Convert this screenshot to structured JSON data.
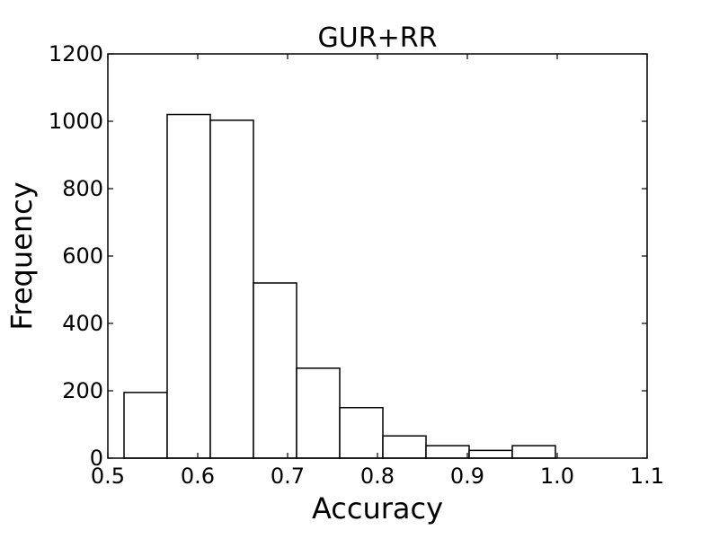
{
  "chart_data": {
    "type": "bar",
    "subtype": "histogram",
    "title": "GUR+RR",
    "xlabel": "Accuracy",
    "ylabel": "Frequency",
    "xlim": [
      0.5,
      1.1
    ],
    "ylim": [
      0,
      1200
    ],
    "xticks": [
      "0.5",
      "0.6",
      "0.7",
      "0.8",
      "0.9",
      "1.0",
      "1.1"
    ],
    "yticks": [
      "0",
      "200",
      "400",
      "600",
      "800",
      "1000",
      "1200"
    ],
    "bins": [
      {
        "x0": 0.518,
        "x1": 0.566,
        "count": 195
      },
      {
        "x0": 0.566,
        "x1": 0.614,
        "count": 1020
      },
      {
        "x0": 0.614,
        "x1": 0.662,
        "count": 1003
      },
      {
        "x0": 0.662,
        "x1": 0.71,
        "count": 520
      },
      {
        "x0": 0.71,
        "x1": 0.758,
        "count": 267
      },
      {
        "x0": 0.758,
        "x1": 0.806,
        "count": 150
      },
      {
        "x0": 0.806,
        "x1": 0.854,
        "count": 66
      },
      {
        "x0": 0.854,
        "x1": 0.902,
        "count": 37
      },
      {
        "x0": 0.902,
        "x1": 0.95,
        "count": 23
      },
      {
        "x0": 0.95,
        "x1": 0.998,
        "count": 37
      }
    ],
    "grid": false,
    "bar_fill": "#ffffff",
    "bar_edge": "#000000"
  }
}
